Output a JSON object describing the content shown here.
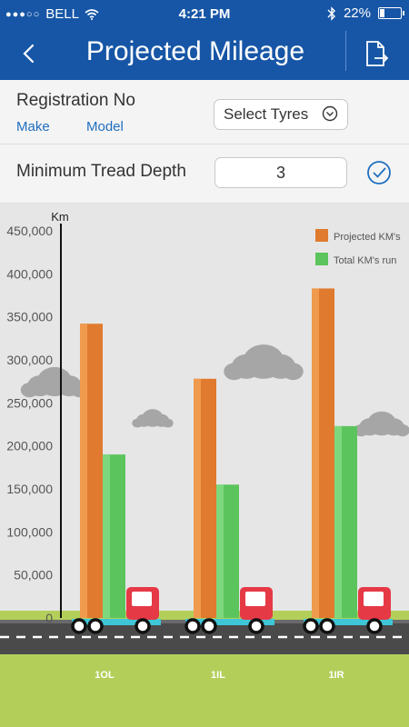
{
  "status": {
    "carrier": "BELL",
    "time": "4:21 PM",
    "battery": "22%",
    "battery_level": 0.22
  },
  "nav": {
    "title": "Projected Mileage"
  },
  "form": {
    "registration_label": "Registration No",
    "make_label": "Make",
    "model_label": "Model",
    "select_tyres_label": "Select Tyres",
    "tread_label": "Minimum Tread Depth",
    "tread_value": "3"
  },
  "colors": {
    "header": "#1756a6",
    "projected": "#e07a2e",
    "total": "#5cc45c",
    "truck": "#e63946",
    "grass": "#b3cf5a",
    "road": "#4a4a4a"
  },
  "chart_data": {
    "type": "bar",
    "ylabel": "Km",
    "ylim": [
      0,
      450000
    ],
    "yticks": [
      "450,000",
      "400,000",
      "350,000",
      "300,000",
      "250,000",
      "200,000",
      "150,000",
      "100,000",
      "50,000",
      "0"
    ],
    "categories": [
      "1OL",
      "1IL",
      "1IR"
    ],
    "series": [
      {
        "name": "Projected KM's",
        "values": [
          342000,
          278000,
          383000
        ]
      },
      {
        "name": "Total KM's run",
        "values": [
          190000,
          155000,
          223000
        ]
      }
    ],
    "legend_position": "top-right"
  }
}
